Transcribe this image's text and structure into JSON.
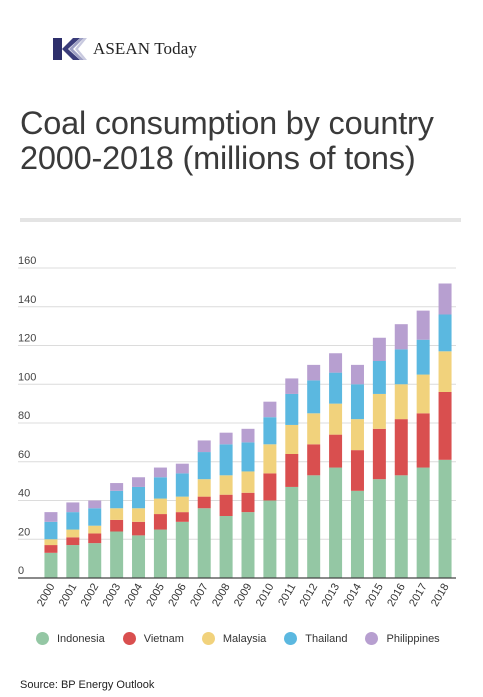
{
  "brand": {
    "name": "ASEAN Today"
  },
  "title": "Coal consumption by country 2000-2018 (millions of tons)",
  "source": "Source: BP Energy Outlook",
  "colors": {
    "Indonesia": "#94c7a4",
    "Vietnam": "#d94f4f",
    "Malaysia": "#f1d27c",
    "Thailand": "#5bb8e0",
    "Philippines": "#b79fd0",
    "gridline": "#dcdcdc",
    "axis": "#444444"
  },
  "chart_data": {
    "type": "bar",
    "stacked": true,
    "title": "Coal consumption by country 2000-2018 (millions of tons)",
    "xlabel": "",
    "ylabel": "",
    "ylim": [
      0,
      160
    ],
    "yticks": [
      0,
      20,
      40,
      60,
      80,
      100,
      120,
      140,
      160
    ],
    "grid": true,
    "legend_position": "bottom",
    "categories": [
      "2000",
      "2001",
      "2002",
      "2003",
      "2004",
      "2005",
      "2006",
      "2007",
      "2008",
      "2009",
      "2010",
      "2011",
      "2012",
      "2013",
      "2014",
      "2015",
      "2016",
      "2017",
      "2018"
    ],
    "series": [
      {
        "name": "Indonesia",
        "values": [
          13,
          17,
          18,
          24,
          22,
          25,
          29,
          36,
          32,
          34,
          40,
          47,
          53,
          57,
          45,
          51,
          53,
          57,
          61
        ]
      },
      {
        "name": "Vietnam",
        "values": [
          4,
          4,
          5,
          6,
          7,
          8,
          5,
          6,
          11,
          10,
          14,
          17,
          16,
          17,
          21,
          26,
          29,
          28,
          35
        ]
      },
      {
        "name": "Malaysia",
        "values": [
          3,
          4,
          4,
          6,
          7,
          8,
          8,
          9,
          10,
          11,
          15,
          15,
          16,
          16,
          16,
          18,
          18,
          20,
          21
        ]
      },
      {
        "name": "Thailand",
        "values": [
          9,
          9,
          9,
          9,
          11,
          11,
          12,
          14,
          16,
          15,
          14,
          16,
          17,
          16,
          18,
          17,
          18,
          18,
          19
        ]
      },
      {
        "name": "Philippines",
        "values": [
          5,
          5,
          4,
          4,
          5,
          5,
          5,
          6,
          6,
          7,
          8,
          8,
          8,
          10,
          10,
          12,
          13,
          15,
          16
        ]
      }
    ]
  }
}
